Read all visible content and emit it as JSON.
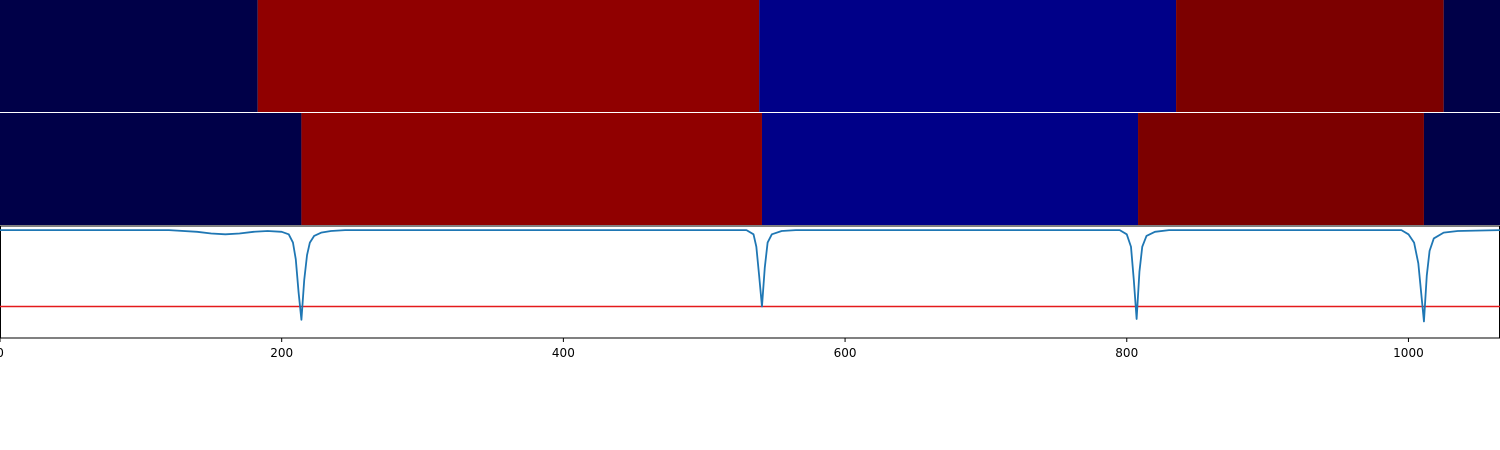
{
  "chart_data": [
    {
      "type": "heatmap",
      "segments": [
        {
          "x0": 0,
          "x1": 183,
          "color": "#000048"
        },
        {
          "x0": 183,
          "x1": 539,
          "color": "#900000"
        },
        {
          "x0": 539,
          "x1": 835,
          "color": "#000088"
        },
        {
          "x0": 835,
          "x1": 1025,
          "color": "#7c0000"
        },
        {
          "x0": 1025,
          "x1": 1065,
          "color": "#000048"
        }
      ]
    },
    {
      "type": "heatmap",
      "segments": [
        {
          "x0": 0,
          "x1": 214,
          "color": "#000048"
        },
        {
          "x0": 214,
          "x1": 541,
          "color": "#900000"
        },
        {
          "x0": 541,
          "x1": 808,
          "color": "#000088"
        },
        {
          "x0": 808,
          "x1": 1011,
          "color": "#7c0000"
        },
        {
          "x0": 1011,
          "x1": 1065,
          "color": "#000048"
        }
      ]
    },
    {
      "type": "line",
      "xlim": [
        0,
        1065
      ],
      "ylim": [
        -1.3,
        0.05
      ],
      "x_ticks": [
        0,
        200,
        400,
        600,
        800,
        1000
      ],
      "x_tick_labels": [
        "0",
        "200",
        "400",
        "600",
        "800",
        "1000"
      ],
      "threshold": {
        "value": -0.92,
        "color": "#e41a1c"
      },
      "series": [
        {
          "color": "#1f77b4",
          "x": [
            0,
            120,
            140,
            150,
            160,
            170,
            180,
            190,
            200,
            205,
            208,
            210,
            212,
            214,
            216,
            218,
            220,
            223,
            228,
            235,
            245,
            530,
            535,
            537,
            539,
            541,
            543,
            545,
            548,
            555,
            565,
            795,
            800,
            803,
            805,
            807,
            809,
            811,
            814,
            820,
            830,
            995,
            1000,
            1004,
            1007,
            1009,
            1011,
            1013,
            1015,
            1018,
            1025,
            1035,
            1065
          ],
          "y": [
            0,
            0,
            -0.02,
            -0.04,
            -0.05,
            -0.04,
            -0.02,
            -0.01,
            -0.02,
            -0.05,
            -0.15,
            -0.35,
            -0.75,
            -1.08,
            -0.6,
            -0.3,
            -0.15,
            -0.07,
            -0.03,
            -0.01,
            0,
            0,
            -0.05,
            -0.2,
            -0.55,
            -0.92,
            -0.45,
            -0.15,
            -0.05,
            -0.01,
            0,
            0,
            -0.05,
            -0.2,
            -0.6,
            -1.07,
            -0.5,
            -0.2,
            -0.07,
            -0.02,
            0,
            0,
            -0.05,
            -0.15,
            -0.4,
            -0.75,
            -1.1,
            -0.55,
            -0.25,
            -0.1,
            -0.03,
            -0.01,
            0
          ]
        }
      ]
    }
  ]
}
